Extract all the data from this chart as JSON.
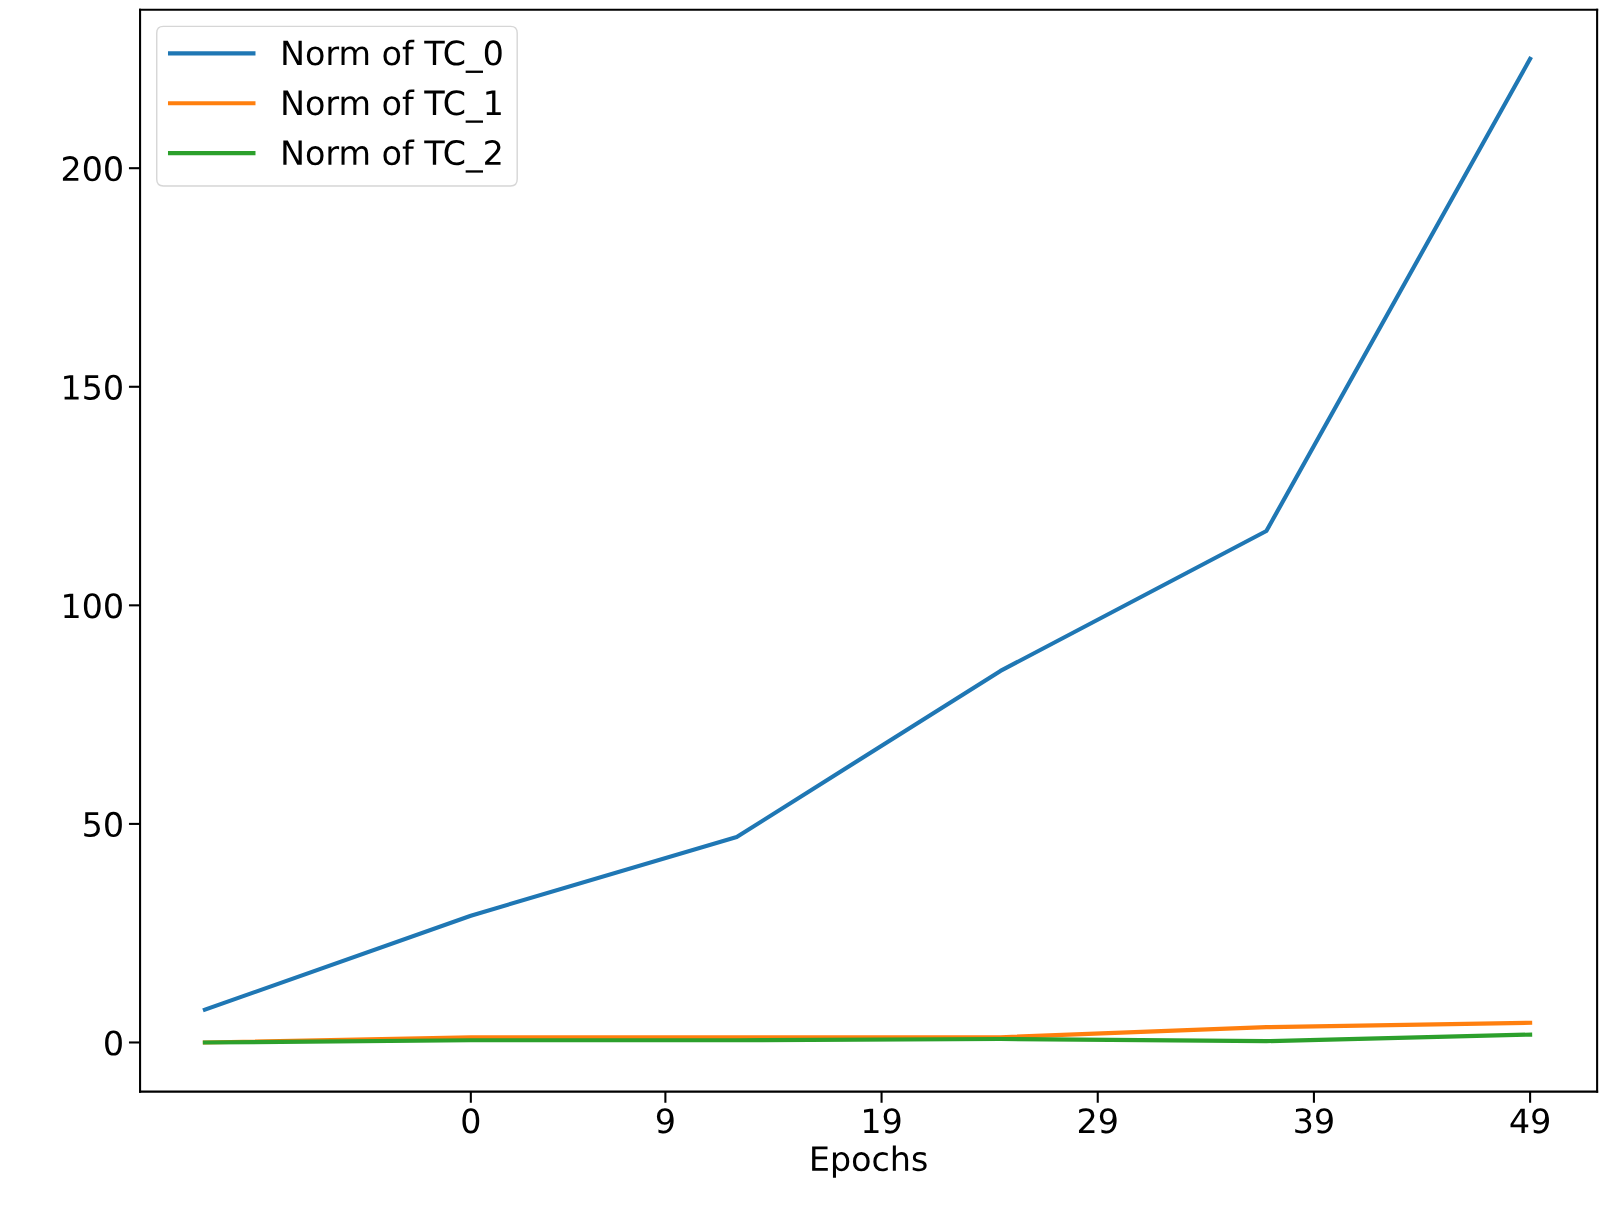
{
  "chart_data": {
    "type": "line",
    "xlabel": "Epochs",
    "x": [
      -12.3,
      0,
      12.3,
      24.5,
      36.8,
      49
    ],
    "xlim": [
      -15.3,
      52.1
    ],
    "xticks": [
      0,
      9,
      19,
      29,
      39,
      49
    ],
    "ylim": [
      -11.25,
      236.25
    ],
    "yticks": [
      0,
      50,
      100,
      150,
      200
    ],
    "series": [
      {
        "name": "Norm of TC_0",
        "color": "#1f77b4",
        "values": [
          7.5,
          29,
          47,
          85,
          117,
          225
        ]
      },
      {
        "name": "Norm of TC_1",
        "color": "#ff7f0e",
        "values": [
          0,
          1.2,
          1.2,
          1.2,
          3.5,
          4.5
        ]
      },
      {
        "name": "Norm of TC_2",
        "color": "#2ca02c",
        "values": [
          0,
          0.5,
          0.5,
          0.8,
          0.3,
          1.8
        ]
      }
    ],
    "legend": "top left",
    "grid": false
  }
}
